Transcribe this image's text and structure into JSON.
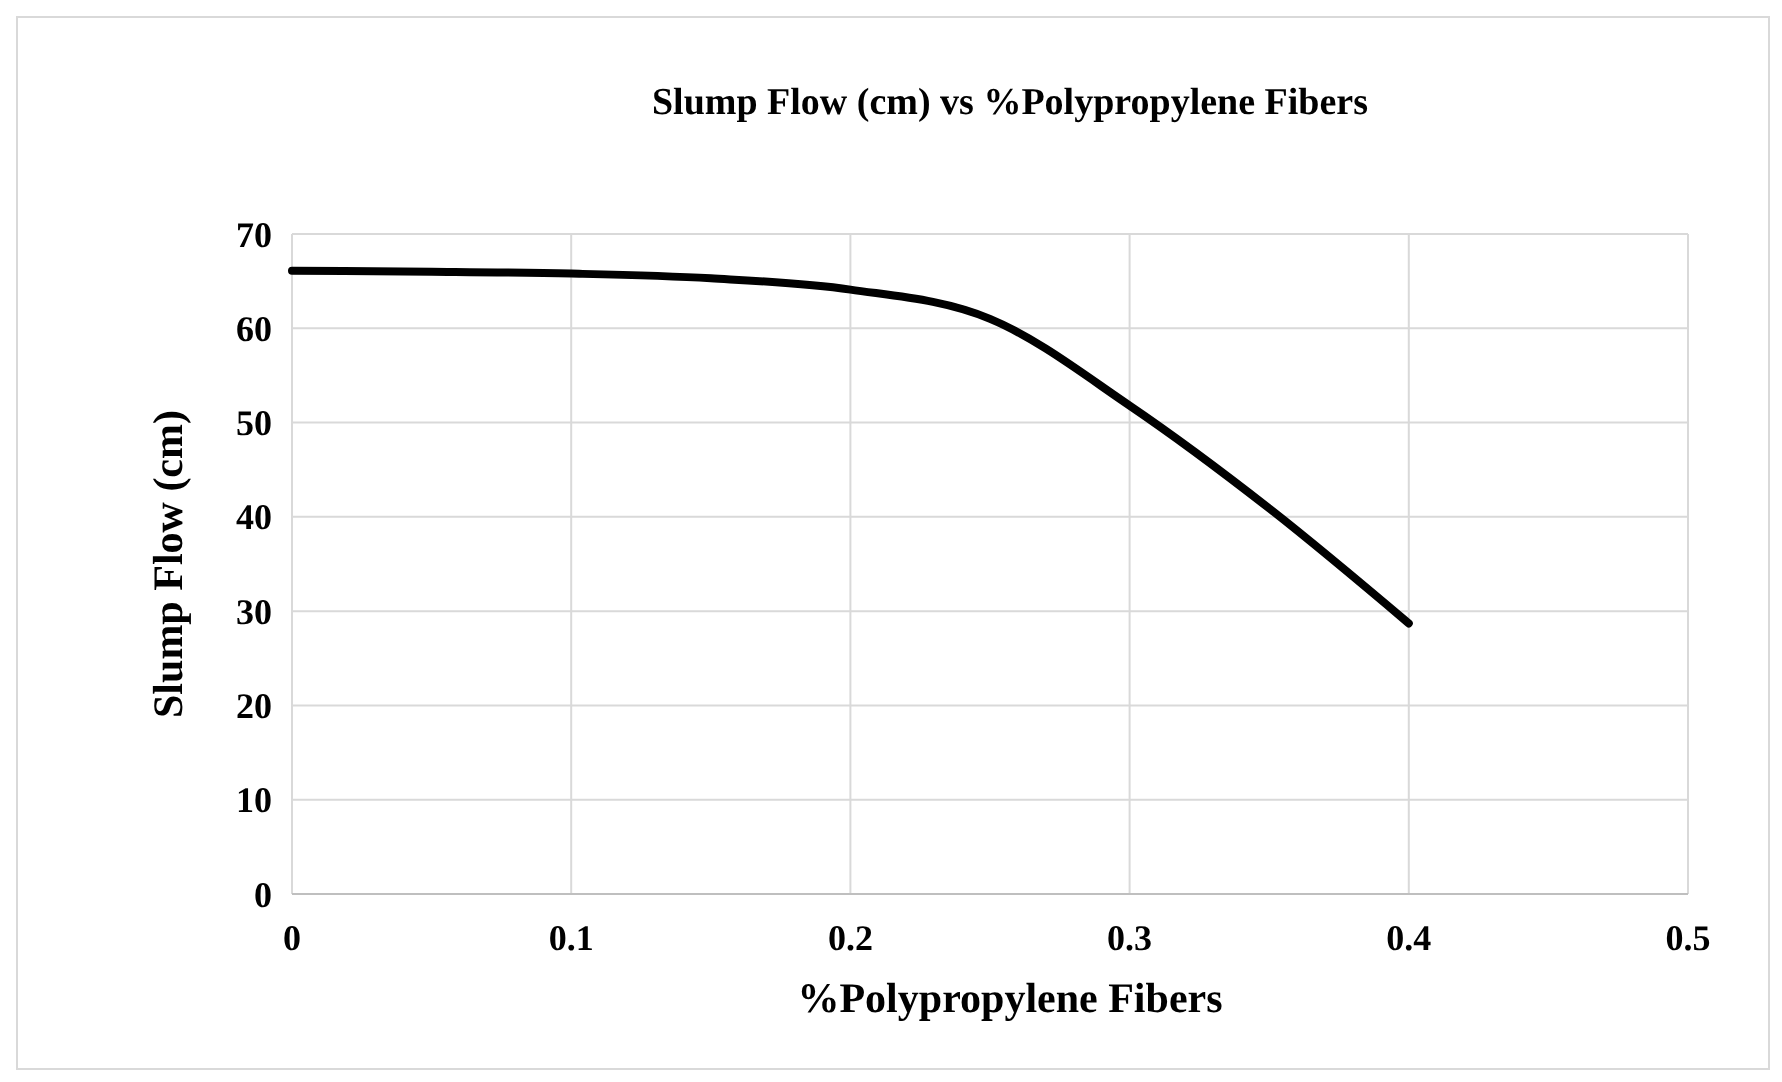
{
  "chart_data": {
    "type": "line",
    "title": "Slump Flow (cm) vs %Polypropylene Fibers",
    "xlabel": "%Polypropylene Fibers",
    "ylabel": "Slump Flow (cm)",
    "x": [
      0,
      0.05,
      0.1,
      0.15,
      0.2,
      0.25,
      0.3,
      0.35,
      0.4
    ],
    "series": [
      {
        "color": "#000000",
        "values": [
          66.1,
          66,
          65.8,
          65.3,
          64.1,
          61,
          51.8,
          40.9,
          28.7
        ]
      }
    ],
    "xlim": [
      0,
      0.5
    ],
    "xticks": [
      0,
      0.1,
      0.2,
      0.3,
      0.4,
      0.5
    ],
    "ylim": [
      0,
      70
    ],
    "yticks": [
      0,
      10,
      20,
      30,
      40,
      50,
      60,
      70
    ],
    "grid": true,
    "marker": "none",
    "line_style": "solid"
  }
}
